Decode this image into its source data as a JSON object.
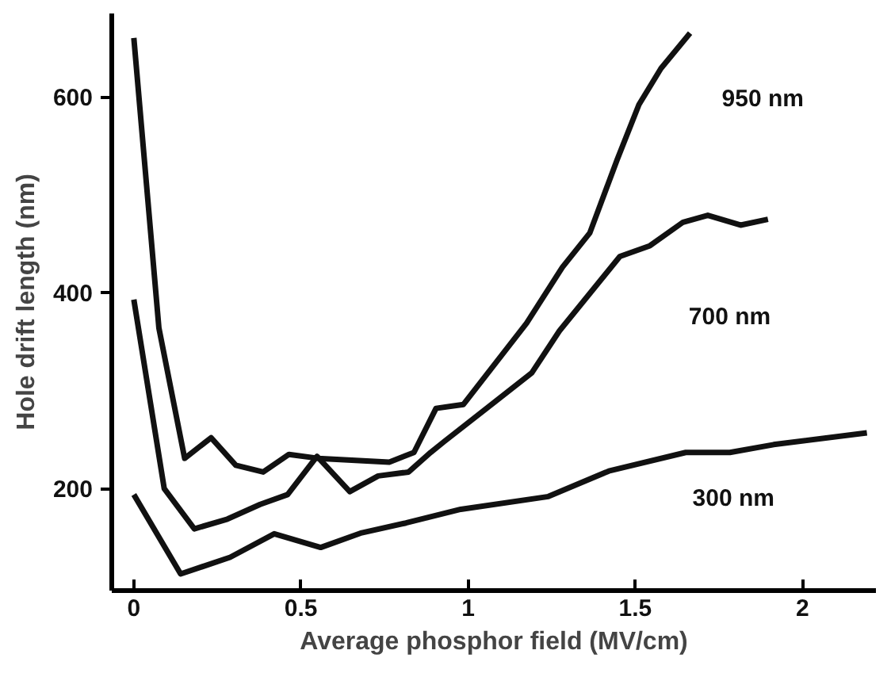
{
  "chart_data": {
    "type": "line",
    "xlabel": "Average phosphor field (MV/cm)",
    "ylabel": "Hole drift length (nm)",
    "xlim": [
      -0.066,
      2.22
    ],
    "ylim": [
      96,
      685
    ],
    "xticks": [
      0,
      0.5,
      1,
      1.5,
      2
    ],
    "yticks": [
      200,
      400,
      600
    ],
    "grid": false,
    "marker": "none",
    "line_style": "solid",
    "series": [
      {
        "name": "950 nm",
        "color": "#111111",
        "x": [
          0,
          0.075,
          0.152,
          0.231,
          0.305,
          0.387,
          0.464,
          0.551,
          0.764,
          0.838,
          0.904,
          0.986,
          1.175,
          1.282,
          1.364,
          1.446,
          1.511,
          1.577,
          1.664
        ],
        "values": [
          660,
          364,
          231,
          252,
          224,
          217,
          235,
          231,
          227,
          237,
          282,
          286,
          369,
          426,
          461,
          536,
          592,
          629,
          665
        ]
      },
      {
        "name": "700 nm",
        "color": "#111111",
        "x": [
          0,
          0.091,
          0.181,
          0.28,
          0.378,
          0.46,
          0.548,
          0.646,
          0.731,
          0.822,
          0.888,
          0.928,
          1.19,
          1.273,
          1.454,
          1.544,
          1.643,
          1.717,
          1.815,
          1.897
        ],
        "values": [
          393,
          200,
          159,
          169,
          184,
          194,
          233,
          197,
          213,
          217,
          237,
          248,
          318,
          361,
          437,
          448,
          472,
          479,
          469,
          475
        ]
      },
      {
        "name": "300 nm",
        "color": "#111111",
        "x": [
          0,
          0.14,
          0.288,
          0.42,
          0.559,
          0.682,
          0.814,
          0.978,
          1.24,
          1.421,
          1.651,
          1.783,
          1.914,
          2.193
        ],
        "values": [
          194,
          113,
          130,
          154,
          140,
          155,
          165,
          179,
          192,
          218,
          237,
          237,
          245,
          257
        ]
      }
    ]
  }
}
